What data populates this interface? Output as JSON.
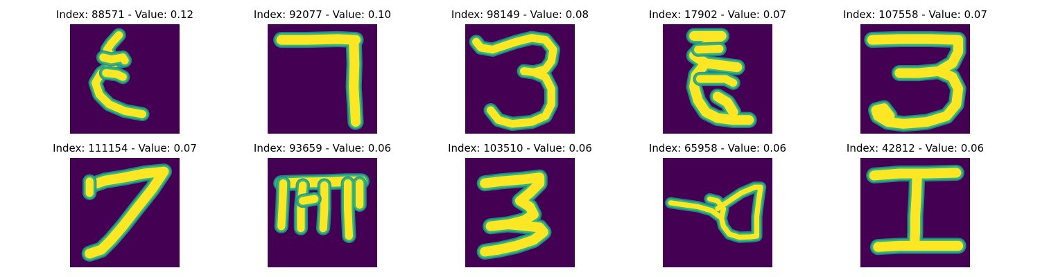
{
  "colors": {
    "background": "#440154",
    "mid_low": "#31688e",
    "mid": "#21918c",
    "mid_high": "#35b779",
    "foreground": "#fde725"
  },
  "labels": {
    "index_prefix": "Index: ",
    "value_prefix": " - Value: "
  },
  "items": [
    {
      "index": "88571",
      "value": "0.12"
    },
    {
      "index": "92077",
      "value": "0.10"
    },
    {
      "index": "98149",
      "value": "0.08"
    },
    {
      "index": "17902",
      "value": "0.07"
    },
    {
      "index": "107558",
      "value": "0.07"
    },
    {
      "index": "111154",
      "value": "0.07"
    },
    {
      "index": "93659",
      "value": "0.06"
    },
    {
      "index": "103510",
      "value": "0.06"
    },
    {
      "index": "65958",
      "value": "0.06"
    },
    {
      "index": "42812",
      "value": "0.06"
    }
  ]
}
